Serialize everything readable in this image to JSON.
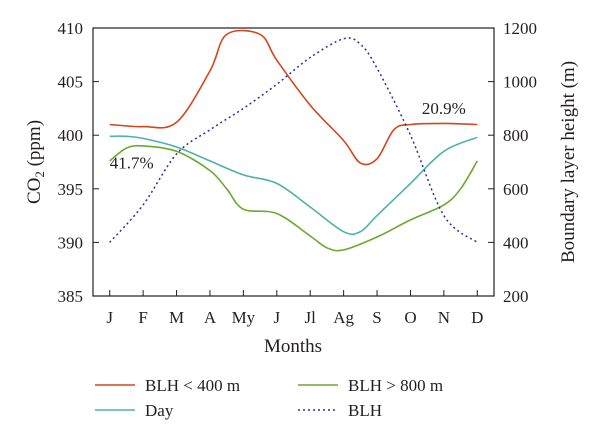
{
  "chart_data": {
    "type": "line",
    "xlabel": "Months",
    "ylabel_left_main": "CO",
    "ylabel_left_sub": "2",
    "ylabel_left_unit": " (ppm)",
    "ylabel_right": "Boundary layer height (m)",
    "categories": [
      "J",
      "F",
      "M",
      "A",
      "My",
      "J",
      "Jl",
      "Ag",
      "S",
      "O",
      "N",
      "D"
    ],
    "y_left": {
      "ylim": [
        385,
        410
      ],
      "ticks": [
        385,
        390,
        395,
        400,
        405,
        410
      ]
    },
    "y_right": {
      "ylim": [
        200,
        1200
      ],
      "ticks": [
        200,
        400,
        600,
        800,
        1000,
        1200
      ]
    },
    "grid": false,
    "legend_position": "bottom",
    "series": [
      {
        "name": "BLH < 400 m",
        "axis": "left",
        "color": "#d4471c",
        "style": "solid",
        "x": [
          0.5,
          1.5,
          2.5,
          3.5,
          4.0,
          5.0,
          5.5,
          6.5,
          7.5,
          8.0,
          8.5,
          9.0,
          9.5,
          10.5,
          11.5
        ],
        "y": [
          401.0,
          400.8,
          401.2,
          406.0,
          409.4,
          409.4,
          407.0,
          402.8,
          399.5,
          397.4,
          397.8,
          400.5,
          401.0,
          401.1,
          401.0
        ]
      },
      {
        "name": "BLH > 800 m",
        "axis": "left",
        "color": "#6aaa2e",
        "style": "solid",
        "x": [
          0.5,
          1.0,
          1.5,
          2.5,
          3.5,
          4.0,
          4.5,
          5.5,
          6.5,
          7.0,
          7.5,
          8.5,
          9.5,
          10.5,
          11.0,
          11.5
        ],
        "y": [
          397.6,
          398.8,
          399.0,
          398.5,
          396.7,
          395.0,
          393.1,
          392.7,
          390.6,
          389.5,
          389.3,
          390.5,
          392.1,
          393.5,
          395.0,
          397.6
        ]
      },
      {
        "name": "Day",
        "axis": "left",
        "color": "#4fb0b0",
        "style": "solid",
        "x": [
          0.5,
          1.0,
          1.5,
          2.5,
          3.5,
          4.5,
          5.5,
          6.5,
          7.5,
          8.0,
          8.5,
          9.5,
          10.5,
          11.5
        ],
        "y": [
          399.9,
          399.9,
          399.7,
          398.9,
          397.6,
          396.3,
          395.5,
          393.3,
          391.0,
          391.0,
          392.5,
          395.5,
          398.5,
          399.8
        ]
      },
      {
        "name": "BLH",
        "axis": "right",
        "color": "#2b2f9e",
        "style": "dotted",
        "x": [
          0.5,
          1.5,
          2.5,
          3.5,
          4.5,
          5.5,
          6.5,
          7.5,
          8.0,
          8.5,
          9.5,
          10.5,
          11.5
        ],
        "y": [
          400,
          540,
          730,
          820,
          900,
          990,
          1090,
          1160,
          1140,
          1050,
          800,
          500,
          400
        ]
      }
    ],
    "annotations": [
      {
        "text": "41.7%",
        "x": 0.5,
        "y": 396.9,
        "axis": "left",
        "anchor": "start"
      },
      {
        "text": "20.9%",
        "x": 10.5,
        "y": 402.0,
        "axis": "left",
        "anchor": "middle"
      }
    ]
  }
}
